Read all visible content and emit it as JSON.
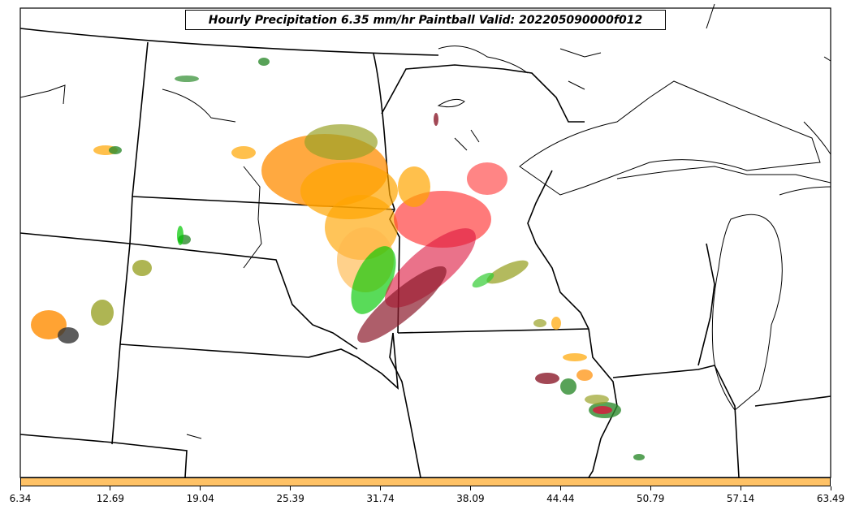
{
  "title": "Hourly Precipitation 6.35 mm/hr Paintball Valid: 202205090000f012",
  "colorbar": {
    "color": "#ffc266",
    "min": 6.34,
    "max": 63.49,
    "ticks": [
      "6.34",
      "12.69",
      "19.04",
      "25.39",
      "31.74",
      "38.09",
      "44.44",
      "50.79",
      "57.14",
      "63.49"
    ]
  },
  "member_colors": [
    "#2e8b2e",
    "#ff8c00",
    "#ffa500",
    "#dc143c",
    "#ff3333",
    "#00c800",
    "#9aa328",
    "#8b1a2b",
    "#333333",
    "#33cc33"
  ]
}
